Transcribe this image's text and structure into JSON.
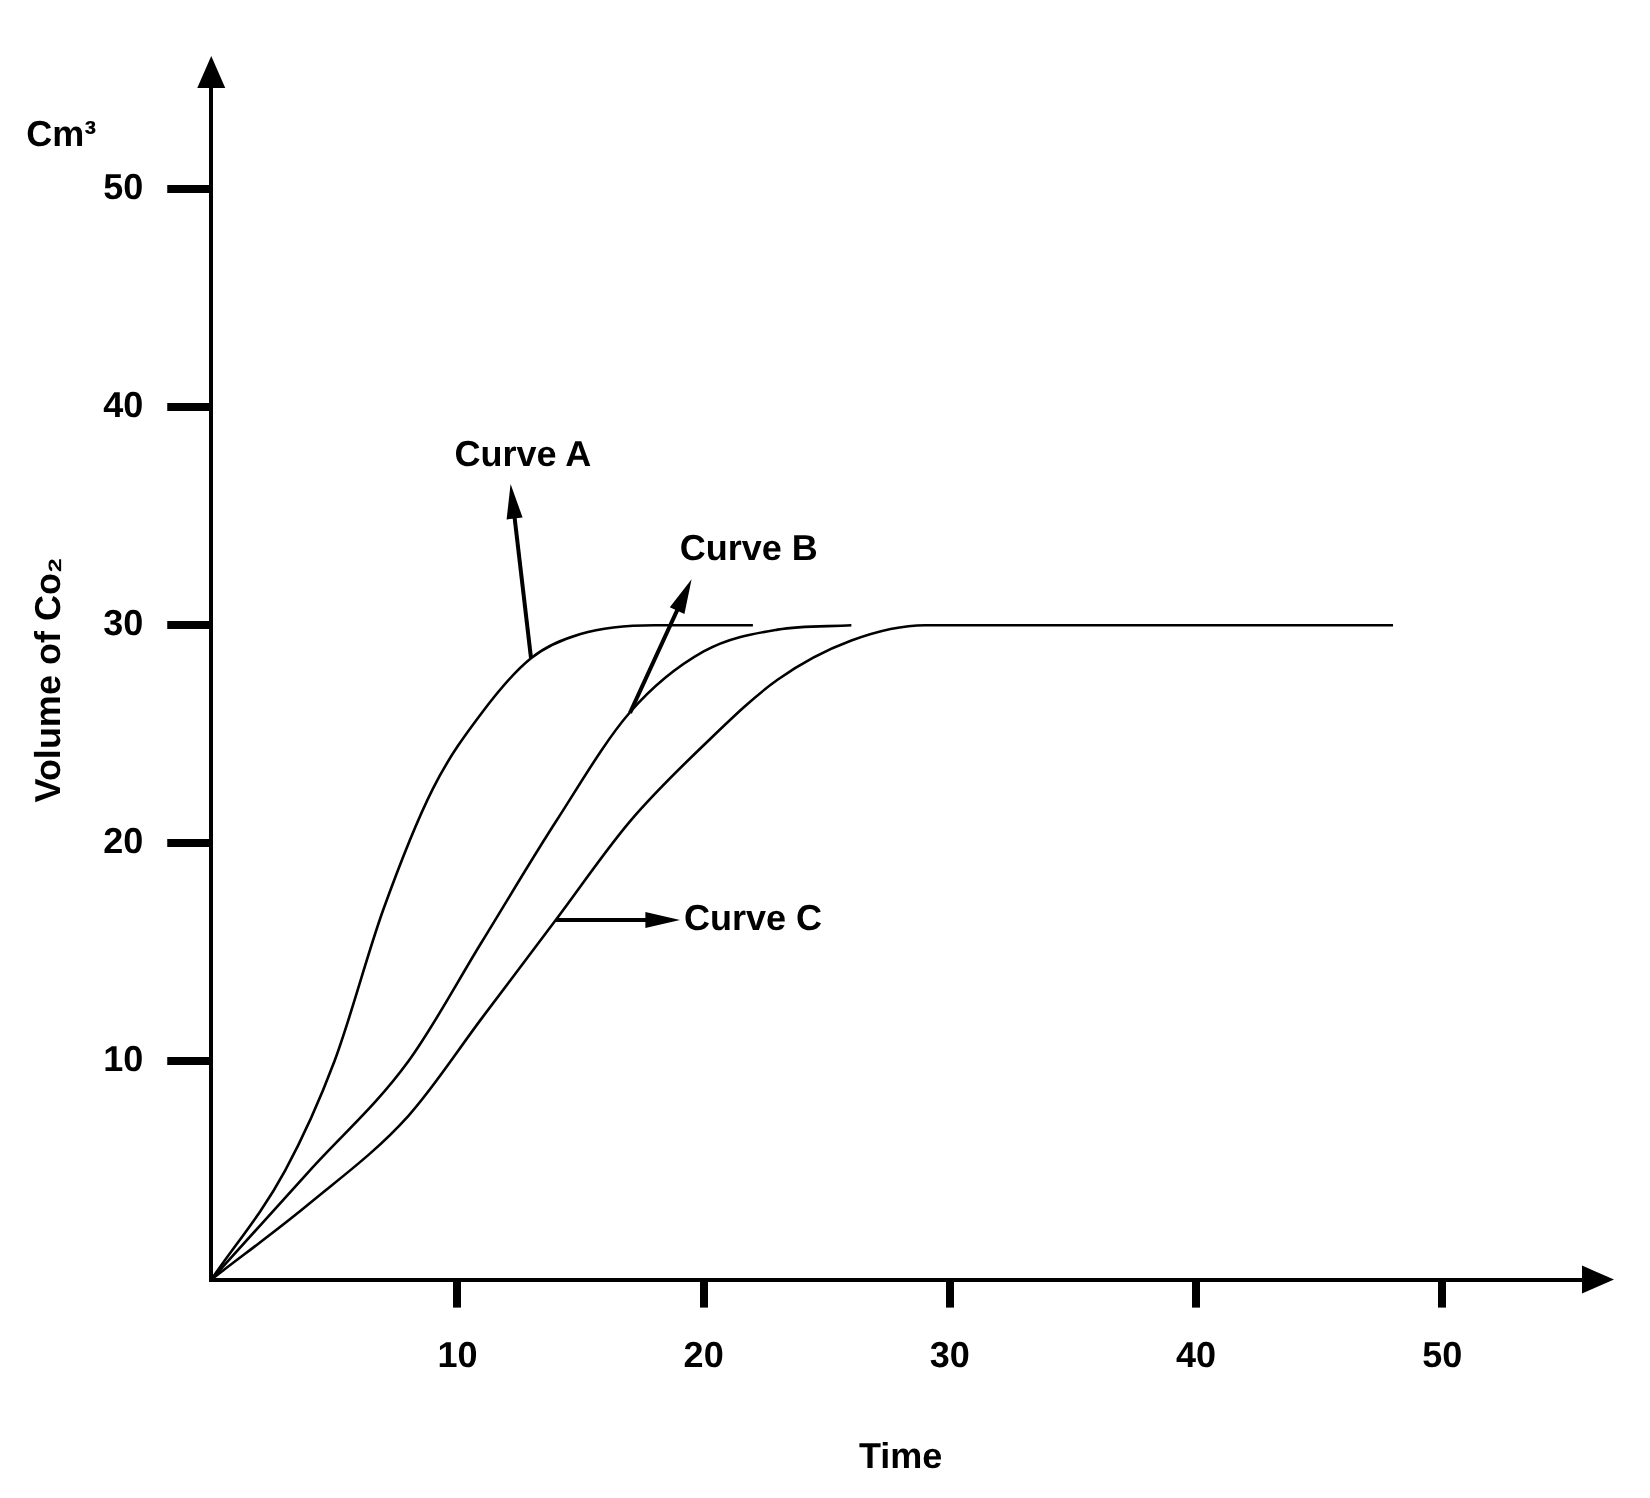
{
  "chart_data": {
    "type": "line",
    "xlabel": "Time",
    "ylabel": "Volume of Co₂",
    "xlim": [
      0,
      56
    ],
    "ylim": [
      0,
      55
    ],
    "xticks": [
      10,
      20,
      30,
      40,
      50
    ],
    "yticks": [
      10,
      20,
      30,
      40,
      50
    ],
    "grid": false,
    "legend": false,
    "marker": "none",
    "line_style": "solid",
    "series": [
      {
        "color": "#000000",
        "x": [
          0,
          3,
          5,
          7,
          9,
          11,
          13,
          15,
          18,
          22
        ],
        "values": [
          0,
          5,
          10,
          17,
          22.5,
          26,
          28.5,
          29.6,
          30,
          30
        ]
      },
      {
        "color": "#000000",
        "x": [
          0,
          4,
          8,
          11,
          14,
          17,
          20,
          23,
          26
        ],
        "values": [
          0,
          5,
          10,
          15.5,
          21,
          26,
          28.8,
          29.8,
          30
        ]
      },
      {
        "color": "#000000",
        "x": [
          0,
          4,
          8,
          11,
          14,
          17,
          20,
          23,
          26,
          29,
          48
        ],
        "values": [
          0,
          3.5,
          7.5,
          12,
          16.5,
          21,
          24.5,
          27.5,
          29.3,
          30,
          30
        ]
      }
    ],
    "annotations": [
      {
        "text": "Curve A",
        "x": 13,
        "y": 28.5
      },
      {
        "text": "Curve B",
        "x": 17,
        "y": 26
      },
      "Curve C",
      "Cm³"
    ]
  }
}
